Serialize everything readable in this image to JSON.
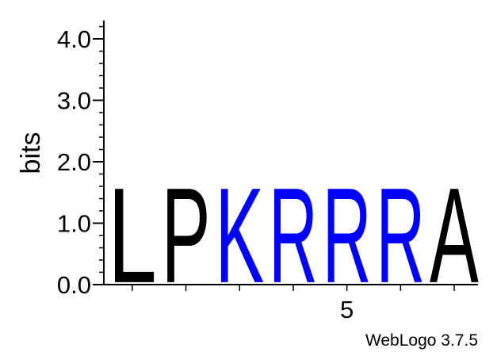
{
  "chart_data": {
    "type": "sequence-logo",
    "ylabel": "bits",
    "ylim": [
      0,
      4.3
    ],
    "y_ticks": [
      {
        "value": 0,
        "label": "0.0"
      },
      {
        "value": 1,
        "label": "1.0"
      },
      {
        "value": 2,
        "label": "2.0"
      },
      {
        "value": 3,
        "label": "3.0"
      },
      {
        "value": 4,
        "label": "4.0"
      }
    ],
    "y_minor_step": 0.2,
    "x_positions": [
      1,
      2,
      3,
      4,
      5,
      6,
      7
    ],
    "x_tick_labels": [
      {
        "position": 5,
        "label": "5"
      }
    ],
    "stacks": [
      {
        "position": 1,
        "letters": [
          {
            "char": "L",
            "bits": 1.63,
            "color": "#000000"
          }
        ]
      },
      {
        "position": 2,
        "letters": [
          {
            "char": "P",
            "bits": 1.63,
            "color": "#000000"
          }
        ]
      },
      {
        "position": 3,
        "letters": [
          {
            "char": "K",
            "bits": 1.63,
            "color": "#0000ff"
          }
        ]
      },
      {
        "position": 4,
        "letters": [
          {
            "char": "R",
            "bits": 1.63,
            "color": "#0000ff"
          }
        ]
      },
      {
        "position": 5,
        "letters": [
          {
            "char": "R",
            "bits": 1.63,
            "color": "#0000ff"
          }
        ]
      },
      {
        "position": 6,
        "letters": [
          {
            "char": "R",
            "bits": 1.63,
            "color": "#0000ff"
          }
        ]
      },
      {
        "position": 7,
        "letters": [
          {
            "char": "A",
            "bits": 1.63,
            "color": "#000000"
          }
        ]
      }
    ],
    "grid": false
  },
  "credit": "WebLogo 3.7.5"
}
